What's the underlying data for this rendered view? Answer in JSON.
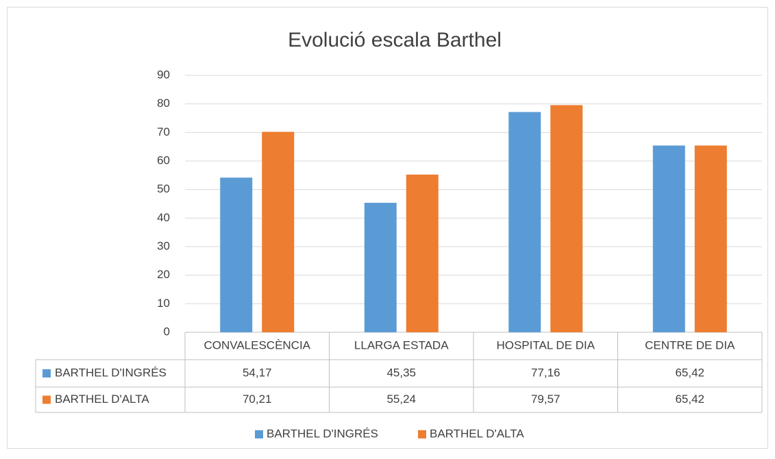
{
  "chart_data": {
    "type": "bar",
    "title": "Evolució escala Barthel",
    "categories": [
      "CONVALESCÈNCIA",
      "LLARGA ESTADA",
      "HOSPITAL DE DIA",
      "CENTRE DE DIA"
    ],
    "series": [
      {
        "name": "BARTHEL D'INGRÉS",
        "color": "#5b9bd5",
        "values": [
          54.17,
          45.35,
          77.16,
          65.42
        ],
        "value_labels": [
          "54,17",
          "45,35",
          "77,16",
          "65,42"
        ]
      },
      {
        "name": "BARTHEL D'ALTA",
        "color": "#ed7d31",
        "values": [
          70.21,
          55.24,
          79.57,
          65.42
        ],
        "value_labels": [
          "70,21",
          "55,24",
          "79,57",
          "65,42"
        ]
      }
    ],
    "ylim": [
      0,
      90
    ],
    "yticks": [
      0,
      10,
      20,
      30,
      40,
      50,
      60,
      70,
      80,
      90
    ],
    "grid": true,
    "legend": "bottom"
  }
}
